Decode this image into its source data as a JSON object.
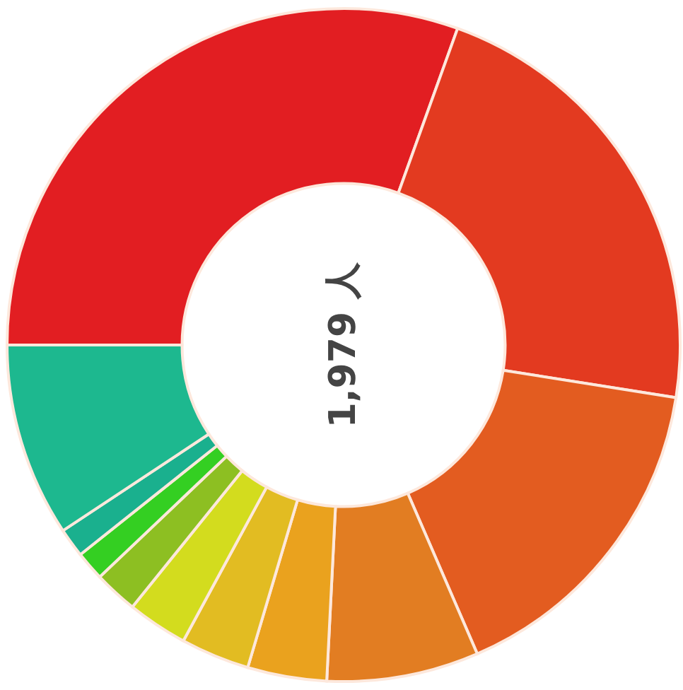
{
  "chart_data": {
    "type": "donut",
    "categories": [
      null,
      null,
      null,
      null,
      null,
      null,
      null,
      null,
      null,
      null,
      null
    ],
    "values": [
      30.5,
      22.0,
      16.0,
      7.3,
      3.8,
      3.3,
      2.9,
      2.1,
      1.4,
      1.4,
      9.3
    ],
    "colors": [
      "#e21e22",
      "#e33a20",
      "#e35c20",
      "#e27d22",
      "#eaa21e",
      "#e2bc22",
      "#d3dc1e",
      "#8dbf22",
      "#34cf22",
      "#1ab08e",
      "#1db88f"
    ],
    "annotations": [
      "1,979 人"
    ]
  }
}
